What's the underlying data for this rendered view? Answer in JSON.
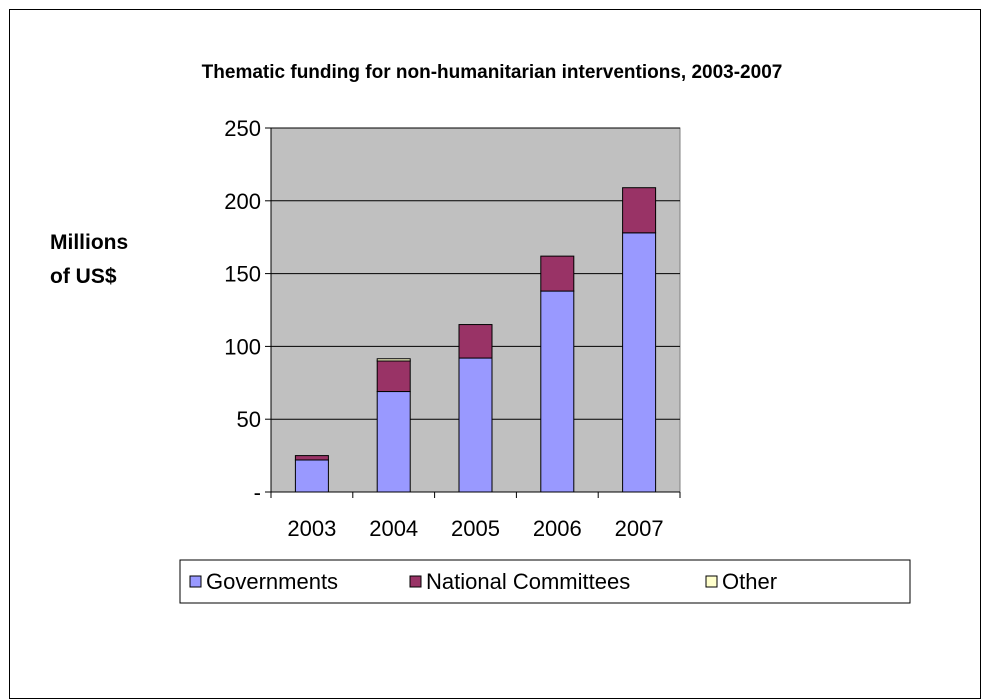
{
  "chart_data": {
    "type": "bar",
    "stacked": true,
    "title": "Thematic funding for non-humanitarian interventions, 2003-2007",
    "ylabel_lines": [
      "Millions",
      "of US$"
    ],
    "xlabel": "",
    "categories": [
      "2003",
      "2004",
      "2005",
      "2006",
      "2007"
    ],
    "ylim": [
      0,
      250
    ],
    "yticks": [
      0,
      50,
      100,
      150,
      200,
      250
    ],
    "ytick_labels": [
      "-",
      "50",
      "100",
      "150",
      "200",
      "250"
    ],
    "grid": true,
    "legend_position": "bottom",
    "series": [
      {
        "name": "Governments",
        "color": "#9999ff",
        "values": [
          22,
          69,
          92,
          138,
          178
        ]
      },
      {
        "name": "National Committees",
        "color": "#993366",
        "values": [
          3,
          21,
          23,
          24,
          31
        ]
      },
      {
        "name": "Other",
        "color": "#ffffcc",
        "values": [
          0,
          1.5,
          0,
          0,
          0
        ]
      }
    ],
    "plot_background": "#c0c0c0"
  }
}
